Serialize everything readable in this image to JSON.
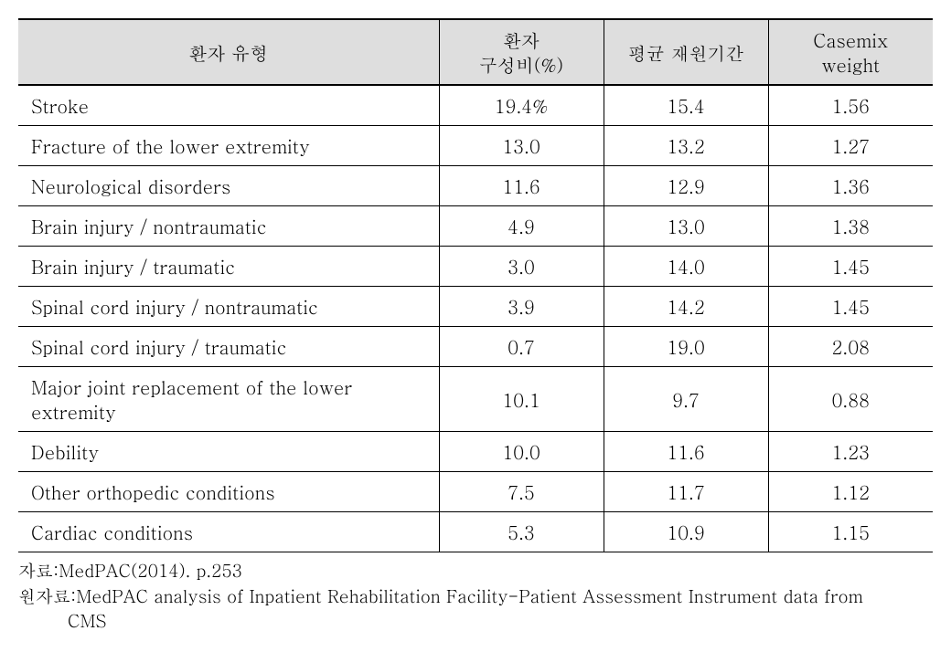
{
  "table": {
    "columns": [
      {
        "label_line1": "환자 유형",
        "label_line2": "",
        "width": "46%",
        "align": "left"
      },
      {
        "label_line1": "환자",
        "label_line2": "구성비(%)",
        "width": "18%",
        "align": "center"
      },
      {
        "label_line1": "평균 재원기간",
        "label_line2": "",
        "width": "18%",
        "align": "center"
      },
      {
        "label_line1": "Casemix",
        "label_line2": "weight",
        "width": "18%",
        "align": "center"
      }
    ],
    "rows": [
      {
        "type": "Stroke",
        "share": "19.4%",
        "los": "15.4",
        "cmw": "1.56"
      },
      {
        "type": "Fracture of the lower extremity",
        "share": "13.0",
        "los": "13.2",
        "cmw": "1.27"
      },
      {
        "type": "Neurological disorders",
        "share": "11.6",
        "los": "12.9",
        "cmw": "1.36"
      },
      {
        "type": "Brain injury  / nontraumatic",
        "share": "4.9",
        "los": "13.0",
        "cmw": "1.38"
      },
      {
        "type": "Brain injury / traumatic",
        "share": "3.0",
        "los": "14.0",
        "cmw": "1.45"
      },
      {
        "type": "Spinal cord injury / nontraumatic",
        "share": "3.9",
        "los": "14.2",
        "cmw": "1.45"
      },
      {
        "type": "Spinal cord injury / traumatic",
        "share": "0.7",
        "los": "19.0",
        "cmw": "2.08"
      },
      {
        "type": "Major joint replacement of the lower extremity",
        "share": "10.1",
        "los": "9.7",
        "cmw": "0.88"
      },
      {
        "type": "Debility",
        "share": "10.0",
        "los": "11.6",
        "cmw": "1.23"
      },
      {
        "type": "Other orthopedic conditions",
        "share": "7.5",
        "los": "11.7",
        "cmw": "1.12"
      },
      {
        "type": "Cardiac conditions",
        "share": "5.3",
        "los": "10.9",
        "cmw": "1.15"
      }
    ],
    "header_bg": "#dedede",
    "border_color": "#000000",
    "font_size_pt": 15
  },
  "footnotes": {
    "line1_label": "자료: ",
    "line1_text": "MedPAC(2014). p.253",
    "line2_label": "원자료: ",
    "line2_text": "MedPAC analysis of Inpatient Rehabilitation Facility-Patient Assessment Instrument data from",
    "line2_cont": "CMS"
  }
}
